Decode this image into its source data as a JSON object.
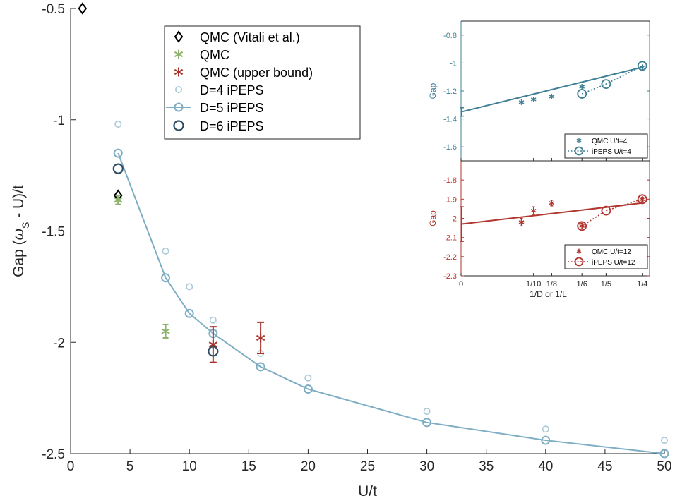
{
  "colors": {
    "vitali": "#000000",
    "qmc": "#8db26b",
    "qmc_upper": "#a83228",
    "d4": "#a9c8d8",
    "d5": "#7eaec4",
    "d6": "#2b4d66",
    "inset_top": "#3f7f93",
    "inset_bottom": "#b0362f",
    "axis": "#262626"
  },
  "chart_data": [
    {
      "type": "scatter",
      "xlabel": "U/t",
      "ylabel_parts": [
        "Gap (",
        "ω",
        "S",
        " - U)/t"
      ],
      "xlim": [
        0,
        50
      ],
      "ylim": [
        -2.5,
        -0.5
      ],
      "xticks": [
        0,
        5,
        10,
        15,
        20,
        25,
        30,
        35,
        40,
        45,
        50
      ],
      "xtick_labels": [
        "0",
        "5",
        "10",
        "15",
        "20",
        "25",
        "30",
        "35",
        "40",
        "45",
        "50"
      ],
      "yticks": [
        -2.5,
        -2,
        -1.5,
        -1,
        -0.5
      ],
      "ytick_labels": [
        "-2.5",
        "-2",
        "-1.5",
        "-1",
        "-0.5"
      ],
      "grid": false,
      "legend_position": "top-center",
      "series": [
        {
          "name": "QMC (Vitali et al.)",
          "marker": "diamond",
          "points": [
            [
              1,
              -0.5
            ],
            [
              4,
              -1.34
            ]
          ]
        },
        {
          "name": "QMC",
          "marker": "asterisk",
          "points": [
            [
              4,
              -1.36,
              0.02
            ],
            [
              8,
              -1.95,
              0.03
            ]
          ]
        },
        {
          "name": "QMC (upper bound)",
          "marker": "asterisk",
          "points": [
            [
              12,
              -2.01,
              0.08
            ],
            [
              16,
              -1.98,
              0.07
            ]
          ]
        },
        {
          "name": "D=4 iPEPS",
          "marker": "circle-small",
          "points": [
            [
              4,
              -1.02
            ],
            [
              8,
              -1.59
            ],
            [
              10,
              -1.75
            ],
            [
              12,
              -1.9
            ],
            [
              16,
              -2.05
            ],
            [
              20,
              -2.16
            ],
            [
              30,
              -2.31
            ],
            [
              40,
              -2.39
            ],
            [
              50,
              -2.44
            ]
          ]
        },
        {
          "name": "D=5 iPEPS",
          "marker": "circle-line",
          "points": [
            [
              4,
              -1.15
            ],
            [
              8,
              -1.71
            ],
            [
              10,
              -1.87
            ],
            [
              12,
              -1.96
            ],
            [
              16,
              -2.11
            ],
            [
              20,
              -2.21
            ],
            [
              30,
              -2.36
            ],
            [
              40,
              -2.44
            ],
            [
              50,
              -2.5
            ]
          ]
        },
        {
          "name": "D=6 iPEPS",
          "marker": "circle-large",
          "points": [
            [
              4,
              -1.22
            ],
            [
              12,
              -2.04
            ]
          ]
        }
      ]
    },
    {
      "type": "scatter",
      "ylabel": "Gap",
      "xlim": [
        0,
        0.26
      ],
      "ylim": [
        -1.7,
        -0.7
      ],
      "yticks": [
        -1.6,
        -1.4,
        -1.2,
        -1,
        -0.8
      ],
      "ytick_labels": [
        "-1.6",
        "-1.4",
        "-1.2",
        "-1",
        "-0.8"
      ],
      "legend_position": "bottom-right",
      "series": [
        {
          "name": "QMC U/t=4",
          "marker": "asterisk",
          "points": [
            [
              0.0833,
              -1.28
            ],
            [
              0.1,
              -1.26
            ],
            [
              0.125,
              -1.24
            ],
            [
              0.1667,
              -1.17
            ],
            [
              0.25,
              -1.03
            ]
          ]
        },
        {
          "name": "iPEPS U/t=4",
          "marker": "circle-dotted",
          "points": [
            [
              0.1667,
              -1.22
            ],
            [
              0.2,
              -1.15
            ],
            [
              0.25,
              -1.02
            ]
          ]
        }
      ],
      "fit": {
        "x0": 0,
        "y0": -1.35,
        "x1": 0.25,
        "y1": -1.03,
        "err0": 0.03
      }
    },
    {
      "type": "scatter",
      "ylabel": "Gap",
      "xlabel": "1/D or 1/L",
      "xlim": [
        0,
        0.26
      ],
      "ylim": [
        -2.3,
        -1.7
      ],
      "xticks": [
        0,
        0.1,
        0.125,
        0.1667,
        0.2,
        0.25
      ],
      "xtick_labels": [
        "0",
        "1/10",
        "1/8",
        "1/6",
        "1/5",
        "1/4"
      ],
      "yticks": [
        -2.3,
        -2.2,
        -2.1,
        -2,
        -1.9,
        -1.8
      ],
      "ytick_labels": [
        "-2.3",
        "-2.2",
        "-2.1",
        "-2",
        "-1.9",
        "-1.8"
      ],
      "legend_position": "bottom-right",
      "series": [
        {
          "name": "QMC U/t=12",
          "marker": "asterisk",
          "points": [
            [
              0.0833,
              -2.02,
              0.02
            ],
            [
              0.1,
              -1.96,
              0.02
            ],
            [
              0.125,
              -1.92,
              0.015
            ],
            [
              0.1667,
              -2.04,
              0.015
            ],
            [
              0.25,
              -1.9,
              0.01
            ]
          ]
        },
        {
          "name": "iPEPS U/t=12",
          "marker": "circle-dotted",
          "points": [
            [
              0.1667,
              -2.04
            ],
            [
              0.2,
              -1.96
            ],
            [
              0.25,
              -1.9
            ]
          ]
        }
      ],
      "fit": {
        "x0": 0,
        "y0": -2.03,
        "x1": 0.25,
        "y1": -1.92,
        "err0": 0.09
      }
    }
  ]
}
